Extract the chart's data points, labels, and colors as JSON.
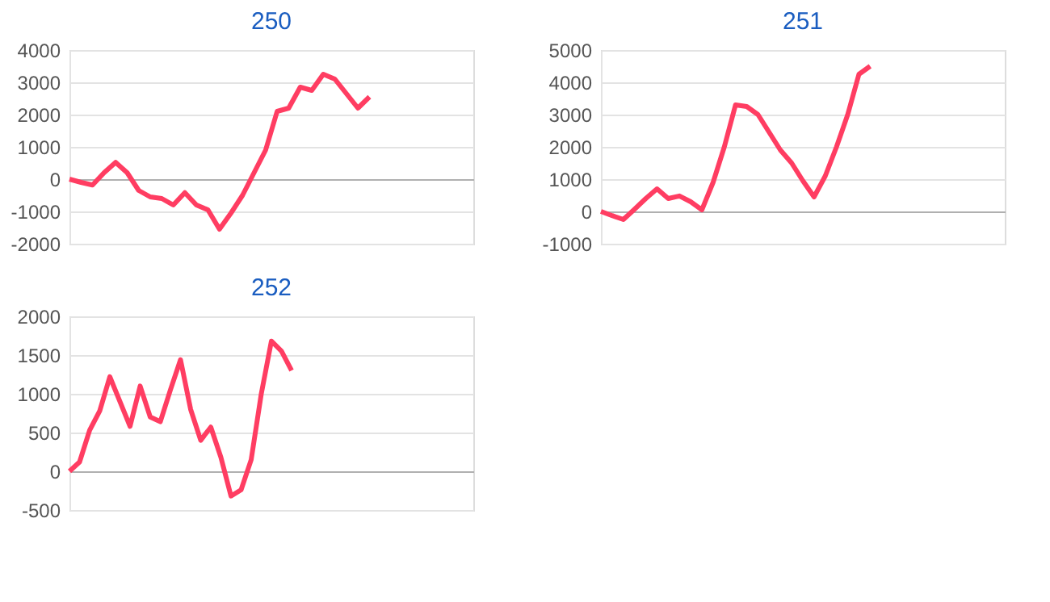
{
  "chart_data": [
    {
      "type": "line",
      "title": "250",
      "categories": [
        null,
        null,
        null,
        null,
        null,
        null,
        null,
        null,
        null,
        null,
        null,
        null,
        null,
        null,
        null,
        null,
        null,
        null,
        null,
        null,
        null,
        null,
        null,
        null,
        null,
        null,
        null,
        null,
        null,
        null,
        null,
        null,
        null,
        null,
        null,
        null
      ],
      "series": [
        {
          "color": "#ff3d62",
          "values": [
            0,
            -100,
            -180,
            200,
            520,
            200,
            -350,
            -550,
            -600,
            -800,
            -420,
            -800,
            -950,
            -1550,
            -1050,
            -500,
            200,
            900,
            2100,
            2200,
            2850,
            2750,
            3250,
            3100,
            2650,
            2200,
            2550,
            null,
            null,
            null,
            null,
            null,
            null,
            null,
            null,
            null
          ]
        }
      ],
      "ylim": [
        -2000,
        4000
      ],
      "yticks": [
        -2000,
        -1000,
        0,
        1000,
        2000,
        3000,
        4000
      ],
      "grid": "y",
      "tick_labels": "y",
      "marker": "none",
      "line_style": "solid"
    },
    {
      "type": "line",
      "title": "251",
      "categories": [
        null,
        null,
        null,
        null,
        null,
        null,
        null,
        null,
        null,
        null,
        null,
        null,
        null,
        null,
        null,
        null,
        null,
        null,
        null,
        null,
        null,
        null,
        null,
        null,
        null,
        null,
        null,
        null,
        null,
        null,
        null,
        null,
        null,
        null,
        null,
        null,
        null
      ],
      "series": [
        {
          "color": "#ff3d62",
          "values": [
            0,
            -130,
            -250,
            70,
            400,
            700,
            400,
            480,
            300,
            50,
            900,
            2000,
            3300,
            3250,
            3000,
            2450,
            1900,
            1500,
            950,
            450,
            1100,
            2000,
            3000,
            4250,
            4500,
            null,
            null,
            null,
            null,
            null,
            null,
            null,
            null,
            null,
            null,
            null,
            null
          ]
        }
      ],
      "ylim": [
        -1000,
        5000
      ],
      "yticks": [
        -1000,
        0,
        1000,
        2000,
        3000,
        4000,
        5000
      ],
      "grid": "y",
      "tick_labels": "y",
      "marker": "none",
      "line_style": "solid"
    },
    {
      "type": "line",
      "title": "252",
      "categories": [
        null,
        null,
        null,
        null,
        null,
        null,
        null,
        null,
        null,
        null,
        null,
        null,
        null,
        null,
        null,
        null,
        null,
        null,
        null,
        null,
        null,
        null,
        null,
        null,
        null,
        null,
        null,
        null,
        null,
        null,
        null,
        null,
        null,
        null,
        null,
        null,
        null,
        null,
        null,
        null,
        null
      ],
      "series": [
        {
          "color": "#ff3d62",
          "values": [
            0,
            120,
            530,
            780,
            1220,
            900,
            580,
            1100,
            700,
            640,
            1050,
            1440,
            800,
            400,
            570,
            180,
            -320,
            -240,
            150,
            1000,
            1680,
            1550,
            1300,
            null,
            null,
            null,
            null,
            null,
            null,
            null,
            null,
            null,
            null,
            null,
            null,
            null,
            null,
            null,
            null,
            null,
            null
          ]
        }
      ],
      "ylim": [
        -500,
        2000
      ],
      "yticks": [
        -500,
        0,
        500,
        1000,
        1500,
        2000
      ],
      "grid": "y",
      "tick_labels": "y",
      "marker": "none",
      "line_style": "solid"
    }
  ]
}
